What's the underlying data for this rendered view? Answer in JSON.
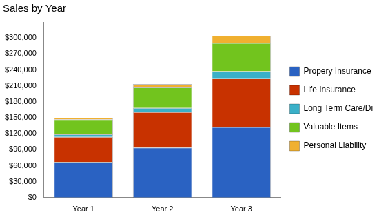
{
  "chart_data": {
    "type": "bar",
    "title": "Sales by Year",
    "stacked": true,
    "legend": "right",
    "grid": false,
    "categories": [
      "Year 1",
      "Year 2",
      "Year 3"
    ],
    "series": [
      {
        "name": "Propery Insurance",
        "color": "#2a62c2",
        "values": [
          67000,
          94000,
          132500
        ]
      },
      {
        "name": "Life Insurance",
        "color": "#c83200",
        "values": [
          47000,
          66500,
          91500
        ]
      },
      {
        "name": "Long Term Care/Disability",
        "color": "#3ab0c8",
        "values": [
          5000,
          8000,
          13500
        ]
      },
      {
        "name": "Valuable Items",
        "color": "#72c41e",
        "values": [
          28000,
          38500,
          53000
        ]
      },
      {
        "name": "Personal Liability",
        "color": "#f0b030",
        "values": [
          3000,
          6500,
          13500
        ]
      }
    ],
    "ylim": [
      0,
      330000
    ],
    "yticks": [
      {
        "value": 0,
        "label": "$0"
      },
      {
        "value": 30000,
        "label": "$30,000"
      },
      {
        "value": 60000,
        "label": "$60,000"
      },
      {
        "value": 90000,
        "label": "$90,000"
      },
      {
        "value": 120000,
        "label": "$120,000"
      },
      {
        "value": 150000,
        "label": "$150,000"
      },
      {
        "value": 180000,
        "label": "$180,000"
      },
      {
        "value": 210000,
        "label": "$210,000"
      },
      {
        "value": 240000,
        "label": "$240,000"
      },
      {
        "value": 270000,
        "label": "$270,000"
      },
      {
        "value": 300000,
        "label": "$300,000"
      }
    ]
  }
}
